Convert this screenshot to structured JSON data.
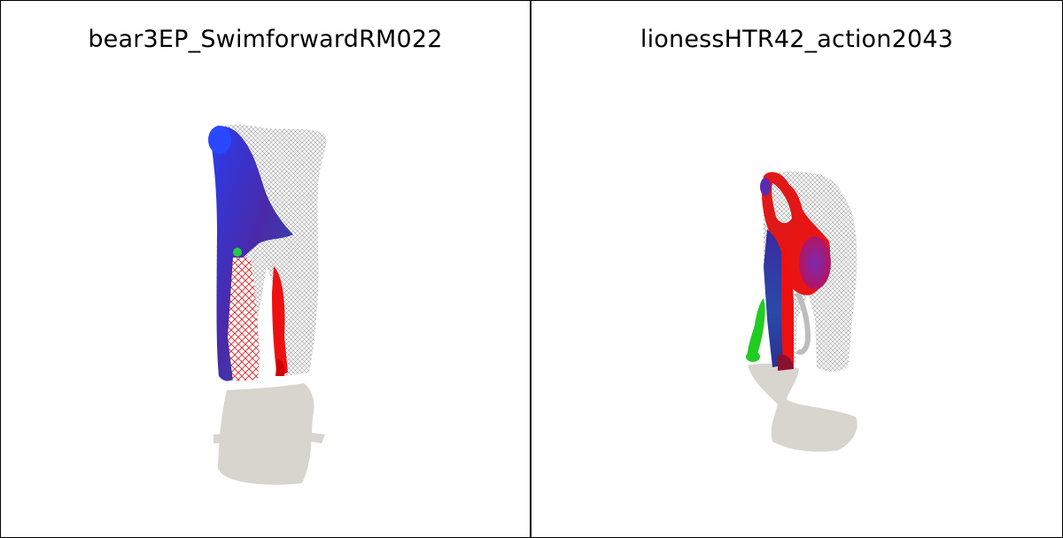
{
  "panels": [
    {
      "title": "bear3EP_SwimforwardRM022",
      "figure": "bear-mesh-render"
    },
    {
      "title": "lionessHTR42_action2043",
      "figure": "lioness-mesh-render"
    }
  ],
  "colors": {
    "shadow": "#d8d5ce",
    "mesh_wire": "#9a9a9a",
    "blue": "#2a3fd6",
    "purple": "#5a2a9a",
    "red": "#ee1010",
    "green": "#22cc22"
  }
}
